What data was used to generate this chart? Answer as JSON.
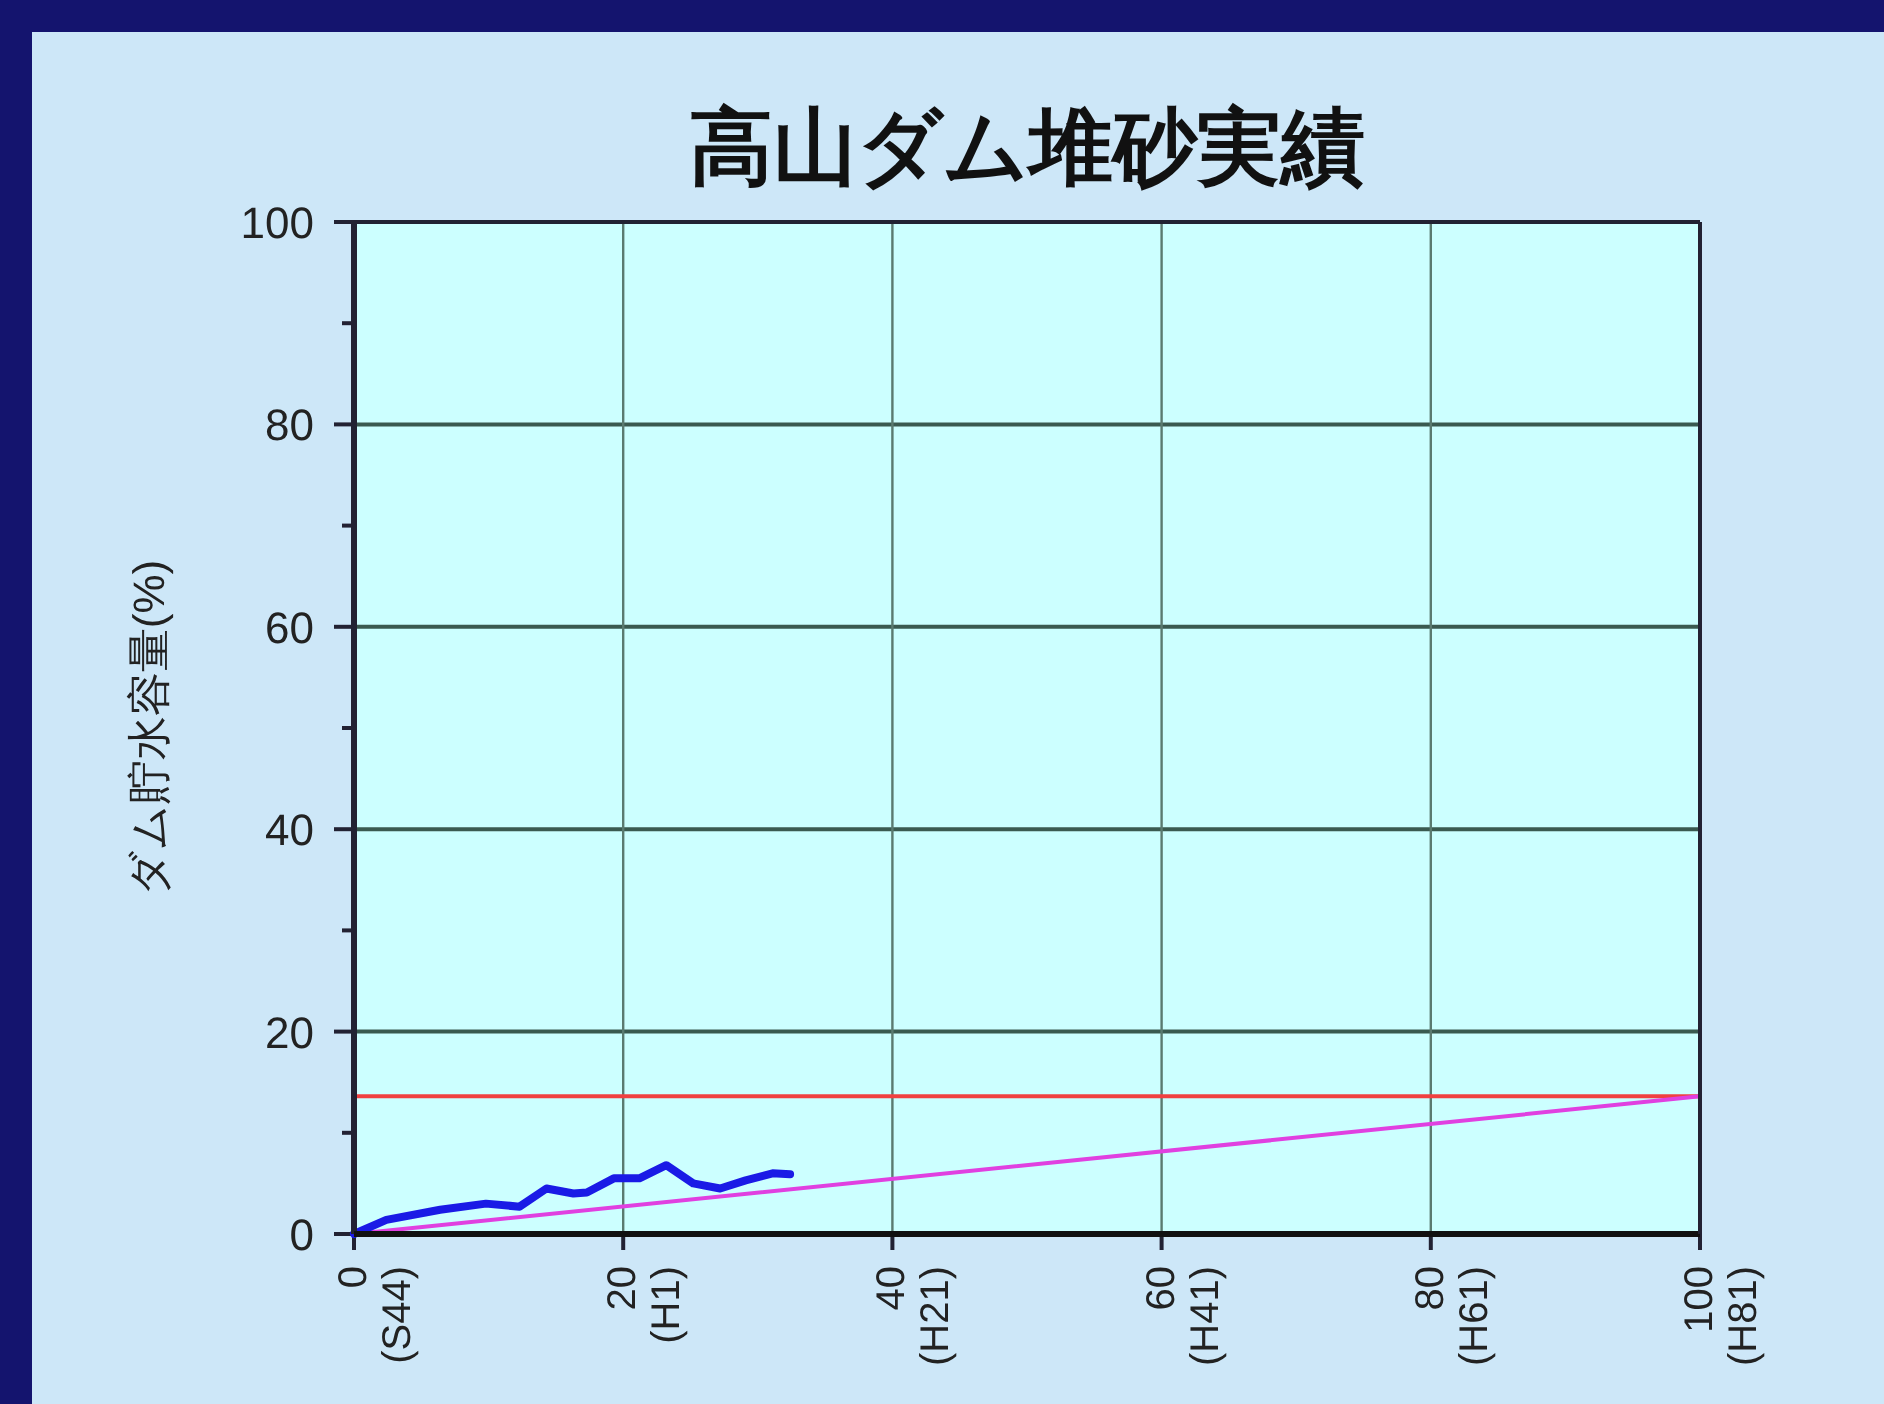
{
  "chart_data": {
    "type": "line",
    "title": "高山ダム堆砂実績",
    "ylabel": "ダム貯水容量(%)",
    "xlim": [
      0,
      100
    ],
    "ylim": [
      0,
      100
    ],
    "xticks": [
      0,
      20,
      40,
      60,
      80,
      100
    ],
    "annotations": [
      "(S44)",
      "(H1)",
      "(H21)",
      "(H41)",
      "(H61)",
      "(H81)"
    ],
    "yticks": [
      0,
      {
        "value": 10,
        "label": null
      },
      20,
      {
        "value": 30,
        "label": null
      },
      40,
      {
        "value": 50,
        "label": null
      },
      60,
      {
        "value": 70,
        "label": null
      },
      80,
      {
        "value": 90,
        "label": null
      },
      100
    ],
    "grid": true,
    "series": [
      {
        "color": "#1a1ae6",
        "x": [
          0,
          2.4,
          6.4,
          9.8,
          12.3,
          14.3,
          16.3,
          17.3,
          19.3,
          21.2,
          23.2,
          25.2,
          27.2,
          29.1,
          31.1,
          32.4
        ],
        "values": [
          0,
          1.4,
          2.4,
          3.0,
          2.7,
          4.5,
          4.0,
          4.1,
          5.5,
          5.5,
          6.8,
          5.0,
          4.5,
          5.3,
          6.0,
          5.9
        ]
      },
      {
        "type": "line",
        "color": "#e040e0",
        "x": [
          0,
          100
        ],
        "values": [
          0,
          13.6
        ]
      }
    ],
    "ref_lines": [
      {
        "axis": "y",
        "value": 13.6,
        "color": "#f04040"
      }
    ]
  }
}
